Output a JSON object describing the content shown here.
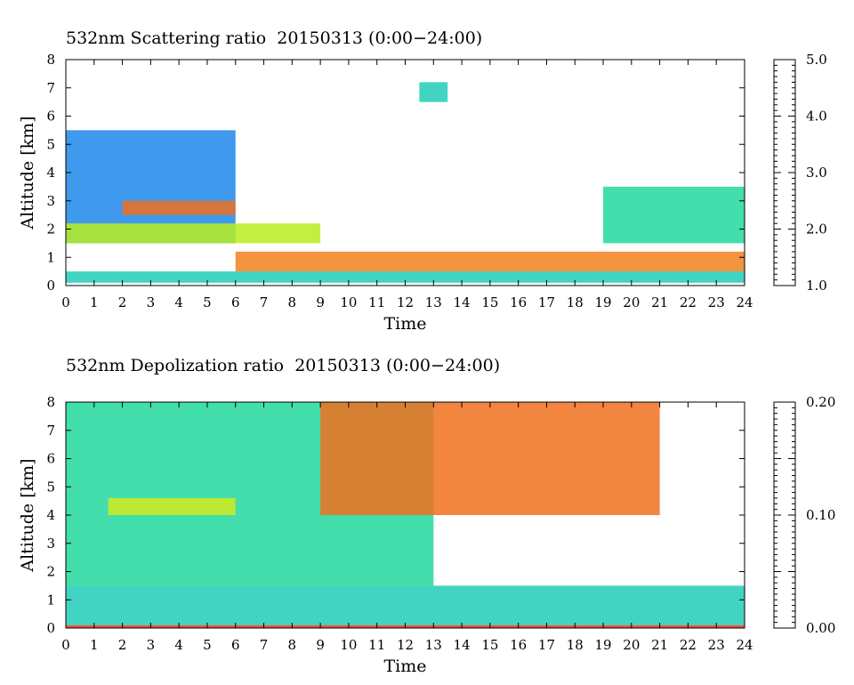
{
  "charts": [
    {
      "title": "532nm Scattering ratio  20150313 (0:00−24:00)",
      "xlabel": "Time",
      "ylabel": "Altitude [km]",
      "colorbar_ticks": [
        "1.0",
        "2.0",
        "3.0",
        "4.0",
        "5.0"
      ]
    },
    {
      "title": "532nm Depolization ratio  20150313 (0:00−24:00)",
      "xlabel": "Time",
      "ylabel": "Altitude [km]",
      "colorbar_ticks": [
        "0.00",
        "0.10",
        "0.20"
      ]
    }
  ],
  "chart_data": [
    {
      "type": "heatmap",
      "title": "532nm Scattering ratio  20150313 (0:00−24:00)",
      "xlabel": "Time",
      "ylabel": "Altitude [km]",
      "xlim": [
        0,
        24
      ],
      "ylim": [
        0,
        8
      ],
      "x_ticks": [
        0,
        1,
        2,
        3,
        4,
        5,
        6,
        7,
        8,
        9,
        10,
        11,
        12,
        13,
        14,
        15,
        16,
        17,
        18,
        19,
        20,
        21,
        22,
        23,
        24
      ],
      "y_ticks": [
        0,
        1,
        2,
        3,
        4,
        5,
        6,
        7,
        8
      ],
      "colorbar": {
        "min": 1.0,
        "max": 5.0,
        "ticks": [
          1.0,
          2.0,
          3.0,
          4.0,
          5.0
        ],
        "colormap": [
          "#1a3ef0",
          "#1fb8e6",
          "#22e08a",
          "#9ef020",
          "#f5e61e",
          "#f59a1e",
          "#e8321e"
        ]
      },
      "features": [
        {
          "time": [
            0,
            6
          ],
          "altitude": [
            1.5,
            5.5
          ],
          "value": 1.4
        },
        {
          "time": [
            2,
            6
          ],
          "altitude": [
            2.5,
            3.0
          ],
          "value": 4.6
        },
        {
          "time": [
            0,
            9
          ],
          "altitude": [
            1.5,
            2.2
          ],
          "value": 3.2
        },
        {
          "time": [
            6,
            24
          ],
          "altitude": [
            0.5,
            1.2
          ],
          "value": 4.5
        },
        {
          "time": [
            0,
            24
          ],
          "altitude": [
            0.1,
            0.5
          ],
          "value": 2.0
        },
        {
          "time": [
            12.5,
            13.5
          ],
          "altitude": [
            6.5,
            7.2
          ],
          "value": 2.0
        },
        {
          "time": [
            19,
            24
          ],
          "altitude": [
            1.5,
            3.5
          ],
          "value": 2.2
        }
      ]
    },
    {
      "type": "heatmap",
      "title": "532nm Depolization ratio  20150313 (0:00−24:00)",
      "xlabel": "Time",
      "ylabel": "Altitude [km]",
      "xlim": [
        0,
        24
      ],
      "ylim": [
        0,
        8
      ],
      "x_ticks": [
        0,
        1,
        2,
        3,
        4,
        5,
        6,
        7,
        8,
        9,
        10,
        11,
        12,
        13,
        14,
        15,
        16,
        17,
        18,
        19,
        20,
        21,
        22,
        23,
        24
      ],
      "y_ticks": [
        0,
        1,
        2,
        3,
        4,
        5,
        6,
        7,
        8
      ],
      "colorbar": {
        "min": 0.0,
        "max": 0.2,
        "ticks": [
          0.0,
          0.1,
          0.2
        ],
        "colormap": [
          "#1a3ef0",
          "#1fb8e6",
          "#22e08a",
          "#9ef020",
          "#f5e61e",
          "#f59a1e",
          "#e8321e"
        ]
      },
      "features": [
        {
          "time": [
            0,
            13
          ],
          "altitude": [
            1.5,
            8.0
          ],
          "value": 0.06
        },
        {
          "time": [
            1.5,
            6
          ],
          "altitude": [
            4.0,
            4.6
          ],
          "value": 0.12
        },
        {
          "time": [
            9,
            21
          ],
          "altitude": [
            4.0,
            8.0
          ],
          "value": 0.18
        },
        {
          "time": [
            0,
            24
          ],
          "altitude": [
            0.1,
            1.5
          ],
          "value": 0.05
        },
        {
          "time": [
            0,
            24
          ],
          "altitude": [
            0.0,
            0.1
          ],
          "value": 0.2
        }
      ]
    }
  ]
}
